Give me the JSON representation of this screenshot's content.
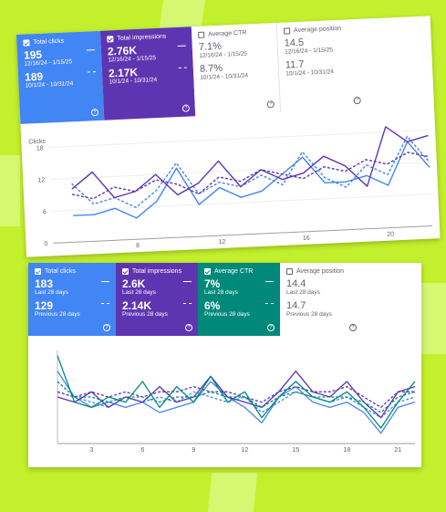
{
  "top": {
    "cards": [
      {
        "title": "Total clicks",
        "checked": true,
        "current": "195",
        "current_range": "12/16/24 - 1/15/25",
        "previous": "189",
        "previous_range": "10/1/24 - 10/31/24",
        "color": "#4285f4"
      },
      {
        "title": "Total impressions",
        "checked": true,
        "current": "2.76K",
        "current_range": "12/16/24 - 1/15/25",
        "previous": "2.17K",
        "previous_range": "10/1/24 - 10/31/24",
        "color": "#5e35b1"
      },
      {
        "title": "Average CTR",
        "checked": false,
        "current": "7.1%",
        "current_range": "12/16/24 - 1/15/25",
        "previous": "8.7%",
        "previous_range": "10/1/24 - 10/31/24"
      },
      {
        "title": "Average position",
        "checked": false,
        "current": "14.5",
        "current_range": "12/16/24 - 1/15/25",
        "previous": "11.7",
        "previous_range": "10/1/24 - 10/31/24"
      }
    ],
    "chart_label": "Clicks",
    "y_ticks": [
      "18",
      "12",
      "6",
      "0"
    ],
    "x_ticks": [
      "8",
      "12",
      "16",
      "20"
    ]
  },
  "bottom": {
    "cards": [
      {
        "title": "Total clicks",
        "checked": true,
        "current": "183",
        "current_range": "Last 28 days",
        "previous": "129",
        "previous_range": "Previous 28 days",
        "color": "#4285f4"
      },
      {
        "title": "Total impressions",
        "checked": true,
        "current": "2.6K",
        "current_range": "Last 28 days",
        "previous": "2.14K",
        "previous_range": "Previous 28 days",
        "color": "#5e35b1"
      },
      {
        "title": "Average CTR",
        "checked": true,
        "current": "7%",
        "current_range": "Last 28 days",
        "previous": "6%",
        "previous_range": "Previous 28 days",
        "color": "#00897b"
      },
      {
        "title": "Average position",
        "checked": false,
        "current": "14.4",
        "current_range": "Last 28 days",
        "previous": "14.7",
        "previous_range": "Previous 28 days"
      }
    ],
    "x_ticks": [
      "3",
      "6",
      "9",
      "12",
      "15",
      "18",
      "21"
    ]
  },
  "help_glyph": "?",
  "chart_data": [
    {
      "type": "line",
      "ylabel": "Clicks",
      "ylim": [
        0,
        18
      ],
      "x": [
        5,
        6,
        7,
        8,
        9,
        10,
        11,
        12,
        13,
        14,
        15,
        16,
        17,
        18,
        19,
        20,
        21,
        22
      ],
      "series": [
        {
          "values": [
            5,
            5,
            6,
            4,
            7,
            13,
            6,
            9,
            7,
            8,
            11,
            14,
            9,
            9,
            10,
            8,
            16,
            11
          ],
          "color": "#4285f4",
          "style": "solid"
        },
        {
          "values": [
            11,
            7,
            8,
            6,
            9,
            14,
            8,
            10,
            9,
            11,
            9,
            15,
            10,
            8,
            12,
            10,
            17,
            12
          ],
          "color": "#4285f4",
          "style": "dashed"
        },
        {
          "values": [
            10,
            13,
            8,
            9,
            12,
            8,
            10,
            14,
            9,
            12,
            10,
            11,
            14,
            12,
            8,
            19,
            16,
            17
          ],
          "color": "#5e35b1",
          "style": "solid"
        },
        {
          "values": [
            9,
            8,
            10,
            9,
            11,
            10,
            8,
            11,
            10,
            12,
            11,
            10,
            12,
            11,
            13,
            12,
            14,
            13
          ],
          "color": "#5e35b1",
          "style": "dashed"
        }
      ]
    },
    {
      "type": "line",
      "x": [
        1,
        2,
        3,
        4,
        5,
        6,
        7,
        8,
        9,
        10,
        11,
        12,
        13,
        14,
        15,
        16,
        17,
        18,
        19,
        20,
        21,
        22
      ],
      "series": [
        {
          "values": [
            14,
            9,
            7,
            8,
            7,
            8,
            6,
            7,
            8,
            12,
            9,
            7,
            4,
            9,
            11,
            8,
            7,
            8,
            6,
            2,
            7,
            8
          ],
          "color": "#4285f4",
          "style": "solid"
        },
        {
          "values": [
            10,
            9,
            8,
            7,
            9,
            8,
            9,
            8,
            10,
            9,
            8,
            9,
            6,
            8,
            10,
            9,
            8,
            9,
            7,
            5,
            8,
            9
          ],
          "color": "#4285f4",
          "style": "dashed"
        },
        {
          "values": [
            9,
            8,
            10,
            7,
            9,
            8,
            11,
            8,
            9,
            13,
            9,
            8,
            7,
            10,
            14,
            10,
            9,
            12,
            8,
            5,
            10,
            11
          ],
          "color": "#5e35b1",
          "style": "solid"
        },
        {
          "values": [
            10,
            9,
            10,
            9,
            10,
            9,
            10,
            10,
            11,
            10,
            10,
            9,
            8,
            10,
            11,
            10,
            10,
            11,
            9,
            7,
            10,
            10
          ],
          "color": "#5e35b1",
          "style": "dashed"
        },
        {
          "values": [
            17,
            8,
            7,
            9,
            8,
            12,
            7,
            11,
            8,
            13,
            8,
            10,
            5,
            9,
            12,
            9,
            8,
            10,
            7,
            3,
            8,
            12
          ],
          "color": "#00897b",
          "style": "solid"
        },
        {
          "values": [
            12,
            9,
            9,
            8,
            9,
            9,
            8,
            9,
            9,
            10,
            9,
            9,
            7,
            9,
            10,
            9,
            9,
            9,
            8,
            6,
            9,
            10
          ],
          "color": "#00897b",
          "style": "dashed"
        }
      ]
    }
  ]
}
